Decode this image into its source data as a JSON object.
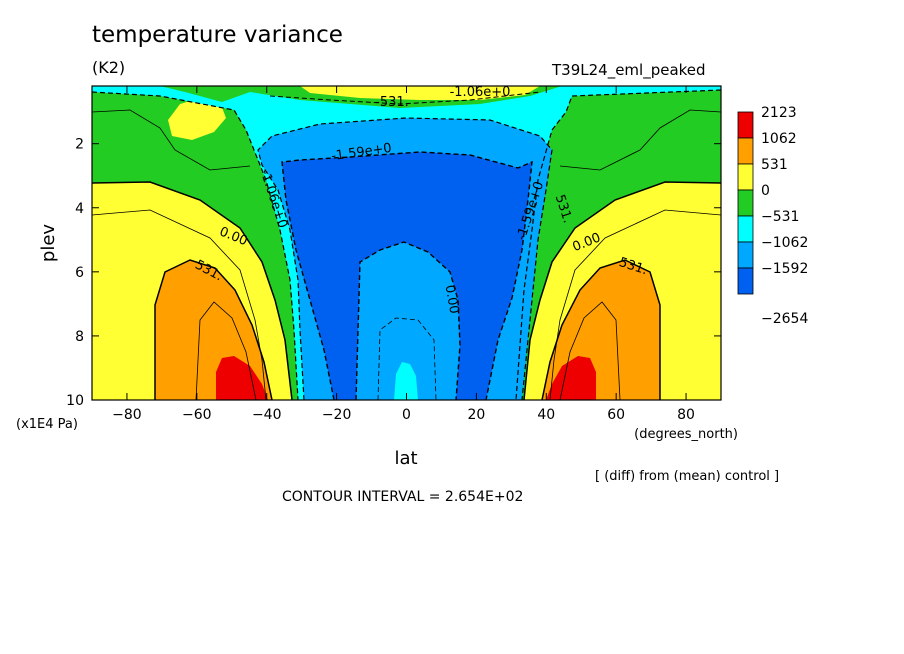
{
  "header": {
    "title": "temperature variance",
    "units": "(K2)",
    "run_name": "T39L24_eml_peaked"
  },
  "footer": {
    "diff_note": "[ (diff) from (mean) control ]",
    "contour_interval": "CONTOUR INTERVAL = 2.654E+02"
  },
  "chart_data": {
    "type": "contour",
    "title": "temperature variance",
    "subtitle": "(K2)",
    "xlabel": "lat",
    "xunits": "(degrees_north)",
    "ylabel": "plev",
    "yunits": "(x1E4 Pa)",
    "xlim": [
      -90,
      90
    ],
    "ylim": [
      10,
      0.2
    ],
    "y_inverted": true,
    "x_ticks": [
      "-80",
      "-60",
      "-40",
      "-20",
      "0",
      "20",
      "40",
      "60",
      "80"
    ],
    "y_ticks": [
      "2",
      "4",
      "6",
      "8",
      "10"
    ],
    "contour_interval": 265.4,
    "contour_line_labels": [
      "0.00",
      "531.",
      "-531.",
      "-1.06e+0",
      "-1.59e+0",
      "0.00",
      "531.",
      "-1.06e+0",
      "-1.59e+0",
      "0.00",
      "531."
    ],
    "legend": {
      "placement": "right",
      "levels": [
        "2123",
        "1062",
        "531",
        "0",
        "-531",
        "-1062",
        "-1592",
        "-2654"
      ],
      "colors": [
        "#ee0000",
        "#ffa000",
        "#ffff33",
        "#22cc22",
        "#00ffff",
        "#00a8ff",
        "#0060f0"
      ]
    },
    "grid": false,
    "features": [
      {
        "region": "upper-level cold variance core",
        "lat_range": [
          -35,
          35
        ],
        "plev_range": [
          2.5,
          9.5
        ],
        "value": "< -1592"
      },
      {
        "region": "southern warm maximum",
        "lat": -48,
        "plev": 9.5,
        "value": "> 1062"
      },
      {
        "region": "northern warm maximum",
        "lat": 47,
        "plev": 9.5,
        "value": "> 1062"
      },
      {
        "region": "near-zero band",
        "lat_range": [
          -90,
          90
        ],
        "plev_range": [
          0.2,
          2
        ],
        "value": "-531 to 531"
      }
    ],
    "fill_colors": {
      "red": "#ee0000",
      "orange": "#ffa000",
      "yellow": "#ffff33",
      "green": "#22cc22",
      "cyan": "#00ffff",
      "lightblue": "#00a8ff",
      "blue": "#0060f0"
    }
  }
}
